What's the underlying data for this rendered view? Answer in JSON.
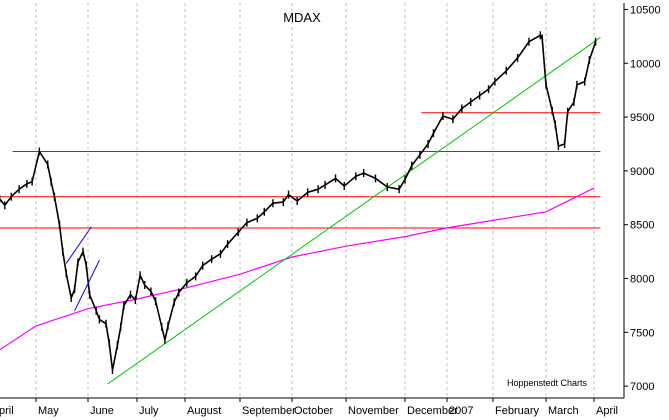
{
  "chart_data": {
    "type": "line",
    "title": "MDAX",
    "credit": "Hoppenstedt Charts",
    "x_tick_labels": [
      "pril",
      "May",
      "June",
      "July",
      "August",
      "September",
      "October",
      "November",
      "December",
      "2007",
      "February",
      "March",
      "April"
    ],
    "y_tick_labels": [
      "7000",
      "7500",
      "8000",
      "8500",
      "9000",
      "9500",
      "10000",
      "10500"
    ],
    "ylim": [
      6890,
      10560
    ],
    "grid": "vertical dashed lines at each month",
    "y_axis_position": "right",
    "colors": {
      "price": "#000000",
      "moving_average": "#ff00ff",
      "trendline": "#00c800",
      "horizontal_levels": "#ff0000",
      "short_channel": "#0000ff",
      "grid": "#c0c0c0"
    },
    "series": [
      {
        "name": "",
        "style": "daily price bars",
        "x": [
          "2006-04-03",
          "2006-04-07",
          "2006-04-12",
          "2006-04-18",
          "2006-04-24",
          "2006-04-28",
          "2006-05-03",
          "2006-05-08",
          "2006-05-10",
          "2006-05-12",
          "2006-05-15",
          "2006-05-17",
          "2006-05-19",
          "2006-05-22",
          "2006-05-24",
          "2006-05-26",
          "2006-05-29",
          "2006-05-31",
          "2006-06-02",
          "2006-06-06",
          "2006-06-08",
          "2006-06-12",
          "2006-06-14",
          "2006-06-16",
          "2006-06-19",
          "2006-06-21",
          "2006-06-23",
          "2006-06-27",
          "2006-06-30",
          "2006-07-03",
          "2006-07-06",
          "2006-07-10",
          "2006-07-13",
          "2006-07-17",
          "2006-07-19",
          "2006-07-21",
          "2006-07-25",
          "2006-07-28",
          "2006-08-02",
          "2006-08-07",
          "2006-08-11",
          "2006-08-16",
          "2006-08-21",
          "2006-08-25",
          "2006-08-31",
          "2006-09-05",
          "2006-09-11",
          "2006-09-15",
          "2006-09-20",
          "2006-09-26",
          "2006-09-29",
          "2006-10-04",
          "2006-10-10",
          "2006-10-16",
          "2006-10-20",
          "2006-10-26",
          "2006-10-31",
          "2006-11-06",
          "2006-11-10",
          "2006-11-16",
          "2006-11-22",
          "2006-11-28",
          "2006-12-01",
          "2006-12-06",
          "2006-12-12",
          "2006-12-18",
          "2006-12-22",
          "2006-12-29",
          "2007-01-05",
          "2007-01-11",
          "2007-01-17",
          "2007-01-23",
          "2007-01-29",
          "2007-02-02",
          "2007-02-08",
          "2007-02-14",
          "2007-02-20",
          "2007-02-26",
          "2007-02-27",
          "2007-03-01",
          "2007-03-05",
          "2007-03-07",
          "2007-03-09",
          "2007-03-13",
          "2007-03-15",
          "2007-03-19",
          "2007-03-21",
          "2007-03-26",
          "2007-03-29",
          "2007-04-02"
        ],
        "y": [
          8740,
          8680,
          8760,
          8830,
          8880,
          8900,
          9180,
          9060,
          8900,
          8760,
          8500,
          8250,
          8050,
          7820,
          7900,
          8150,
          8250,
          8120,
          7850,
          7700,
          7620,
          7580,
          7400,
          7150,
          7380,
          7550,
          7750,
          7850,
          7800,
          8030,
          7940,
          7880,
          7790,
          7550,
          7430,
          7560,
          7780,
          7870,
          7960,
          8020,
          8120,
          8180,
          8230,
          8320,
          8430,
          8520,
          8560,
          8620,
          8700,
          8710,
          8780,
          8720,
          8800,
          8830,
          8870,
          8930,
          8860,
          8950,
          8980,
          8930,
          8850,
          8830,
          8920,
          9050,
          9150,
          9250,
          9350,
          9510,
          9480,
          9580,
          9640,
          9700,
          9760,
          9830,
          9930,
          10050,
          10200,
          10260,
          10230,
          9800,
          9560,
          9430,
          9230,
          9250,
          9550,
          9640,
          9800,
          9830,
          10030,
          10200
        ]
      },
      {
        "name": "",
        "style": "moving average line",
        "x": [
          "2006-04-01",
          "2006-05-01",
          "2006-06-01",
          "2006-07-01",
          "2006-08-01",
          "2006-09-01",
          "2006-10-01",
          "2006-11-01",
          "2006-12-01",
          "2007-01-01",
          "2007-02-01",
          "2007-03-01",
          "2007-04-01"
        ],
        "y": [
          7320,
          7560,
          7720,
          7810,
          7910,
          8040,
          8200,
          8300,
          8390,
          8470,
          8540,
          8620,
          8840
        ]
      }
    ],
    "trendlines": [
      {
        "name": "",
        "from": {
          "x": "2006-06-13",
          "y": 7020
        },
        "to": {
          "x": "2007-04-05",
          "y": 10240
        }
      }
    ],
    "short_channel_lines": [
      {
        "from": {
          "x": "2006-05-19",
          "y": 8140
        },
        "to": {
          "x": "2006-06-03",
          "y": 8480
        }
      },
      {
        "from": {
          "x": "2006-05-24",
          "y": 7700
        },
        "to": {
          "x": "2006-06-08",
          "y": 8170
        }
      }
    ],
    "horizontal_levels": [
      {
        "y": 9540,
        "from": "2006-12-13",
        "to": "2007-04-05"
      },
      {
        "y": 9180,
        "from": "2006-04-13",
        "to": "2007-04-05"
      },
      {
        "y": 8760,
        "from": "2006-04-01",
        "to": "2007-04-05"
      },
      {
        "y": 8470,
        "from": "2006-04-01",
        "to": "2007-04-05"
      }
    ]
  }
}
